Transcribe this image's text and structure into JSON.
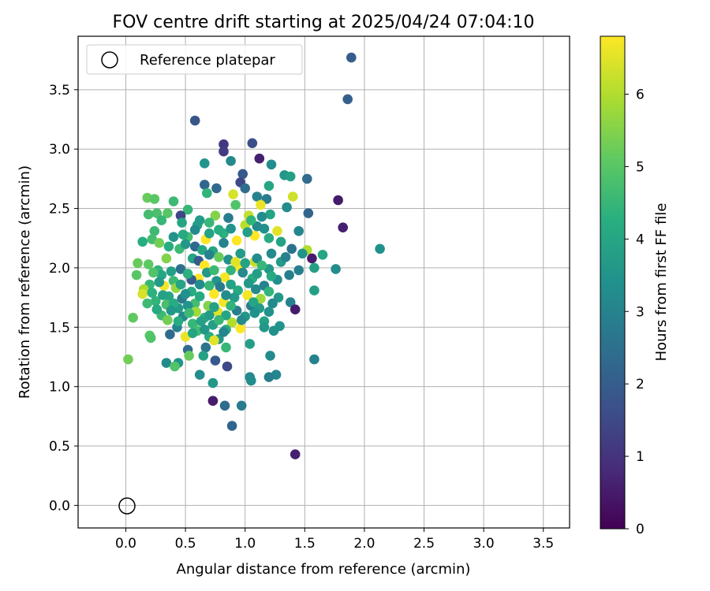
{
  "chart_data": {
    "type": "scatter",
    "title": "FOV centre drift starting at 2025/04/24 07:04:10",
    "xlabel": "Angular distance from reference (arcmin)",
    "ylabel": "Rotation from reference (arcmin)",
    "xlim": [
      -0.4,
      3.72
    ],
    "ylim": [
      -0.19,
      3.95
    ],
    "xticks": [
      0.0,
      0.5,
      1.0,
      1.5,
      2.0,
      2.5,
      3.0,
      3.5
    ],
    "xtick_labels": [
      "0.0",
      "0.5",
      "1.0",
      "1.5",
      "2.0",
      "2.5",
      "3.0",
      "3.5"
    ],
    "yticks": [
      0.0,
      0.5,
      1.0,
      1.5,
      2.0,
      2.5,
      3.0,
      3.5
    ],
    "ytick_labels": [
      "0.0",
      "0.5",
      "1.0",
      "1.5",
      "2.0",
      "2.5",
      "3.0",
      "3.5"
    ],
    "grid": true,
    "legend": {
      "placement": "top-left",
      "entries": [
        {
          "label": "Reference platepar",
          "marker": "open-circle"
        }
      ]
    },
    "reference_point": {
      "x": 0.0,
      "y": 0.0
    },
    "colorbar": {
      "label": "Hours from first FF file",
      "colormap": "viridis",
      "range": [
        0,
        6.8
      ],
      "ticks": [
        0,
        1,
        2,
        3,
        4,
        5,
        6
      ],
      "tick_labels": [
        "0",
        "1",
        "2",
        "3",
        "4",
        "5",
        "6"
      ]
    },
    "points": [
      [
        1.89,
        3.77,
        2.0
      ],
      [
        1.86,
        3.42,
        2.1
      ],
      [
        0.58,
        3.24,
        1.8
      ],
      [
        0.82,
        3.04,
        1.1
      ],
      [
        1.06,
        3.05,
        1.6
      ],
      [
        0.82,
        2.98,
        1.2
      ],
      [
        1.12,
        2.92,
        0.6
      ],
      [
        0.88,
        2.9,
        3.2
      ],
      [
        1.22,
        2.87,
        3.3
      ],
      [
        0.66,
        2.88,
        3.5
      ],
      [
        0.98,
        2.79,
        1.9
      ],
      [
        1.33,
        2.78,
        3.6
      ],
      [
        1.38,
        2.77,
        3.8
      ],
      [
        1.52,
        2.75,
        2.4
      ],
      [
        0.96,
        2.72,
        1.5
      ],
      [
        0.66,
        2.7,
        2.2
      ],
      [
        0.76,
        2.67,
        2.3
      ],
      [
        1.0,
        2.67,
        2.4
      ],
      [
        0.68,
        2.63,
        4.4
      ],
      [
        0.9,
        2.62,
        6.4
      ],
      [
        1.2,
        2.69,
        4.0
      ],
      [
        1.1,
        2.6,
        3.0
      ],
      [
        1.4,
        2.6,
        6.3
      ],
      [
        1.18,
        2.58,
        2.8
      ],
      [
        1.78,
        2.57,
        0.5
      ],
      [
        0.18,
        2.59,
        5.2
      ],
      [
        0.24,
        2.58,
        5.0
      ],
      [
        0.4,
        2.56,
        4.6
      ],
      [
        0.92,
        2.53,
        4.9
      ],
      [
        1.13,
        2.53,
        6.6
      ],
      [
        1.35,
        2.51,
        3.2
      ],
      [
        0.52,
        2.49,
        4.5
      ],
      [
        0.26,
        2.46,
        4.8
      ],
      [
        0.35,
        2.46,
        5.0
      ],
      [
        0.19,
        2.45,
        4.7
      ],
      [
        1.03,
        2.44,
        6.2
      ],
      [
        0.46,
        2.44,
        1.4
      ],
      [
        1.53,
        2.46,
        2.2
      ],
      [
        1.21,
        2.45,
        3.9
      ],
      [
        0.75,
        2.44,
        5.5
      ],
      [
        0.3,
        2.4,
        4.5
      ],
      [
        0.47,
        2.38,
        4.0
      ],
      [
        0.6,
        2.36,
        3.8
      ],
      [
        1.0,
        2.36,
        6.1
      ],
      [
        1.82,
        2.34,
        0.6
      ],
      [
        1.16,
        2.33,
        3.4
      ],
      [
        0.82,
        2.29,
        4.3
      ],
      [
        1.45,
        2.31,
        3.1
      ],
      [
        0.24,
        2.31,
        4.6
      ],
      [
        1.27,
        2.31,
        6.5
      ],
      [
        0.93,
        2.23,
        6.8
      ],
      [
        0.67,
        2.24,
        6.8
      ],
      [
        0.14,
        2.22,
        4.2
      ],
      [
        0.52,
        2.26,
        4.7
      ],
      [
        1.52,
        2.15,
        6.0
      ],
      [
        1.39,
        2.16,
        2.5
      ],
      [
        2.13,
        2.16,
        3.4
      ],
      [
        1.08,
        2.27,
        6.8
      ],
      [
        0.45,
        2.16,
        4.6
      ],
      [
        0.82,
        2.21,
        3.0
      ],
      [
        0.73,
        2.14,
        4.0
      ],
      [
        1.22,
        2.12,
        3.2
      ],
      [
        1.65,
        2.11,
        4.0
      ],
      [
        1.48,
        2.12,
        3.5
      ],
      [
        0.96,
        2.12,
        3.7
      ],
      [
        1.56,
        2.08,
        0.5
      ],
      [
        0.56,
        2.08,
        4.0
      ],
      [
        0.34,
        2.08,
        5.5
      ],
      [
        1.08,
        2.05,
        6.2
      ],
      [
        0.61,
        2.06,
        1.9
      ],
      [
        0.1,
        2.04,
        5.2
      ],
      [
        0.19,
        2.03,
        5.1
      ],
      [
        0.66,
        2.02,
        6.8
      ],
      [
        0.95,
        2.01,
        6.8
      ],
      [
        1.45,
        1.98,
        2.9
      ],
      [
        1.58,
        2.0,
        3.8
      ],
      [
        1.76,
        1.99,
        3.3
      ],
      [
        0.88,
        1.98,
        4.4
      ],
      [
        0.27,
        1.98,
        4.4
      ],
      [
        1.2,
        1.99,
        3.6
      ],
      [
        0.46,
        1.99,
        2.5
      ],
      [
        0.09,
        1.94,
        5.0
      ],
      [
        1.37,
        1.94,
        2.9
      ],
      [
        0.3,
        1.94,
        4.0
      ],
      [
        0.83,
        1.92,
        6.7
      ],
      [
        0.61,
        1.91,
        6.8
      ],
      [
        1.06,
        1.91,
        4.2
      ],
      [
        0.4,
        1.89,
        4.6
      ],
      [
        0.76,
        1.89,
        3.5
      ],
      [
        0.55,
        1.9,
        2.0
      ],
      [
        1.27,
        1.9,
        3.3
      ],
      [
        1.03,
        1.87,
        3.6
      ],
      [
        0.2,
        1.86,
        4.5
      ],
      [
        0.15,
        1.82,
        5.9
      ],
      [
        0.32,
        1.85,
        6.7
      ],
      [
        1.16,
        1.85,
        3.0
      ],
      [
        0.42,
        1.83,
        5.7
      ],
      [
        0.79,
        1.84,
        2.8
      ],
      [
        1.58,
        1.81,
        3.8
      ],
      [
        0.94,
        1.81,
        4.1
      ],
      [
        0.55,
        1.8,
        4.2
      ],
      [
        0.14,
        1.78,
        6.4
      ],
      [
        0.74,
        1.78,
        6.8
      ],
      [
        1.02,
        1.77,
        6.7
      ],
      [
        0.36,
        1.76,
        4.0
      ],
      [
        1.28,
        1.75,
        3.6
      ],
      [
        0.91,
        1.75,
        3.7
      ],
      [
        1.13,
        1.74,
        5.8
      ],
      [
        0.47,
        1.74,
        2.8
      ],
      [
        0.25,
        1.72,
        4.4
      ],
      [
        0.82,
        1.71,
        6.7
      ],
      [
        1.38,
        1.71,
        3.0
      ],
      [
        0.58,
        1.7,
        4.7
      ],
      [
        1.23,
        1.7,
        3.2
      ],
      [
        0.34,
        1.69,
        4.8
      ],
      [
        1.05,
        1.68,
        2.8
      ],
      [
        0.69,
        1.68,
        5.5
      ],
      [
        0.44,
        1.66,
        3.7
      ],
      [
        1.42,
        1.65,
        0.5
      ],
      [
        0.93,
        1.64,
        2.9
      ],
      [
        1.2,
        1.63,
        3.4
      ],
      [
        0.59,
        1.63,
        5.8
      ],
      [
        0.77,
        1.63,
        6.5
      ],
      [
        0.3,
        1.6,
        4.6
      ],
      [
        0.06,
        1.58,
        5.1
      ],
      [
        1.0,
        1.59,
        3.6
      ],
      [
        0.48,
        1.59,
        3.2
      ],
      [
        0.66,
        1.58,
        4.3
      ],
      [
        0.35,
        1.56,
        5.3
      ],
      [
        1.16,
        1.55,
        3.9
      ],
      [
        0.89,
        1.54,
        6.0
      ],
      [
        0.56,
        1.53,
        4.5
      ],
      [
        0.73,
        1.52,
        3.8
      ],
      [
        1.29,
        1.51,
        3.5
      ],
      [
        0.43,
        1.5,
        3.0
      ],
      [
        1.16,
        1.5,
        3.6
      ],
      [
        0.96,
        1.49,
        6.8
      ],
      [
        0.84,
        1.48,
        4.1
      ],
      [
        0.6,
        1.47,
        4.7
      ],
      [
        1.24,
        1.47,
        3.4
      ],
      [
        0.37,
        1.44,
        2.4
      ],
      [
        0.2,
        1.43,
        5.0
      ],
      [
        0.7,
        1.42,
        4.2
      ],
      [
        0.5,
        1.42,
        6.6
      ],
      [
        0.21,
        1.41,
        4.9
      ],
      [
        0.78,
        1.4,
        3.6
      ],
      [
        0.74,
        1.39,
        6.5
      ],
      [
        1.04,
        1.36,
        3.8
      ],
      [
        0.84,
        1.33,
        4.5
      ],
      [
        0.67,
        1.33,
        2.6
      ],
      [
        0.52,
        1.31,
        2.4
      ],
      [
        1.21,
        1.26,
        3.2
      ],
      [
        0.53,
        1.26,
        5.2
      ],
      [
        0.65,
        1.26,
        3.9
      ],
      [
        1.58,
        1.23,
        3.0
      ],
      [
        0.02,
        1.23,
        5.3
      ],
      [
        0.75,
        1.22,
        1.9
      ],
      [
        0.34,
        1.2,
        3.2
      ],
      [
        0.44,
        1.2,
        3.5
      ],
      [
        0.41,
        1.17,
        4.9
      ],
      [
        0.85,
        1.17,
        1.5
      ],
      [
        0.62,
        1.1,
        3.3
      ],
      [
        1.26,
        1.1,
        3.1
      ],
      [
        1.04,
        1.08,
        3.2
      ],
      [
        1.05,
        1.05,
        3.3
      ],
      [
        1.2,
        1.08,
        2.9
      ],
      [
        0.73,
        1.03,
        3.6
      ],
      [
        0.73,
        0.88,
        0.5
      ],
      [
        0.83,
        0.84,
        2.4
      ],
      [
        0.97,
        0.84,
        2.8
      ],
      [
        0.89,
        0.67,
        2.2
      ],
      [
        1.42,
        0.43,
        0.6
      ],
      [
        0.22,
        2.24,
        4.7
      ],
      [
        0.28,
        2.21,
        5.3
      ],
      [
        0.36,
        2.18,
        4.2
      ],
      [
        0.5,
        2.2,
        3.6
      ],
      [
        0.58,
        2.18,
        2.3
      ],
      [
        0.64,
        2.15,
        4.0
      ],
      [
        0.7,
        2.11,
        3.0
      ],
      [
        0.78,
        2.09,
        5.2
      ],
      [
        0.86,
        2.07,
        3.4
      ],
      [
        0.92,
        2.05,
        6.5
      ],
      [
        1.0,
        2.04,
        3.9
      ],
      [
        1.1,
        2.08,
        3.3
      ],
      [
        1.14,
        2.02,
        4.5
      ],
      [
        1.3,
        2.05,
        3.7
      ],
      [
        1.34,
        2.09,
        3.0
      ],
      [
        0.23,
        1.96,
        4.9
      ],
      [
        0.38,
        1.97,
        3.8
      ],
      [
        0.52,
        1.95,
        4.3
      ],
      [
        0.68,
        1.96,
        3.6
      ],
      [
        0.74,
        1.98,
        4.6
      ],
      [
        0.98,
        1.96,
        3.2
      ],
      [
        1.1,
        1.95,
        3.8
      ],
      [
        1.22,
        1.93,
        4.1
      ],
      [
        0.28,
        1.88,
        3.7
      ],
      [
        0.46,
        1.86,
        4.0
      ],
      [
        0.62,
        1.86,
        3.3
      ],
      [
        0.7,
        1.85,
        4.5
      ],
      [
        0.88,
        1.86,
        3.9
      ],
      [
        1.09,
        1.82,
        3.2
      ],
      [
        1.2,
        1.8,
        4.4
      ],
      [
        0.22,
        1.79,
        4.3
      ],
      [
        0.31,
        1.77,
        3.9
      ],
      [
        0.5,
        1.78,
        3.4
      ],
      [
        0.62,
        1.76,
        4.1
      ],
      [
        0.84,
        1.77,
        3.3
      ],
      [
        1.07,
        1.71,
        4.0
      ],
      [
        0.18,
        1.7,
        4.6
      ],
      [
        0.4,
        1.7,
        4.2
      ],
      [
        0.52,
        1.68,
        3.5
      ],
      [
        0.74,
        1.67,
        3.9
      ],
      [
        0.88,
        1.68,
        4.4
      ],
      [
        1.12,
        1.66,
        3.7
      ],
      [
        0.26,
        1.65,
        4.1
      ],
      [
        0.38,
        1.64,
        3.6
      ],
      [
        0.53,
        1.62,
        4.6
      ],
      [
        0.7,
        1.6,
        3.7
      ],
      [
        0.84,
        1.6,
        4.0
      ],
      [
        1.08,
        1.62,
        3.4
      ],
      [
        0.44,
        1.55,
        4.2
      ],
      [
        0.63,
        1.55,
        3.9
      ],
      [
        0.78,
        1.56,
        4.5
      ],
      [
        0.97,
        1.56,
        3.2
      ],
      [
        0.66,
        1.48,
        3.6
      ],
      [
        0.82,
        1.46,
        3.1
      ],
      [
        0.56,
        1.45,
        4.0
      ],
      [
        0.48,
        2.28,
        4.1
      ],
      [
        0.58,
        2.32,
        3.2
      ],
      [
        0.7,
        2.29,
        3.9
      ],
      [
        0.78,
        2.32,
        4.2
      ],
      [
        0.88,
        2.33,
        3.5
      ],
      [
        1.02,
        2.3,
        3.8
      ],
      [
        1.1,
        2.35,
        3.2
      ],
      [
        1.2,
        2.25,
        4.2
      ],
      [
        1.3,
        2.22,
        3.9
      ],
      [
        0.4,
        2.26,
        3.5
      ],
      [
        0.62,
        2.4,
        3.7
      ],
      [
        0.7,
        2.38,
        4.5
      ],
      [
        0.86,
        2.42,
        2.8
      ],
      [
        1.05,
        2.4,
        4.4
      ],
      [
        1.14,
        2.43,
        3.3
      ]
    ]
  }
}
